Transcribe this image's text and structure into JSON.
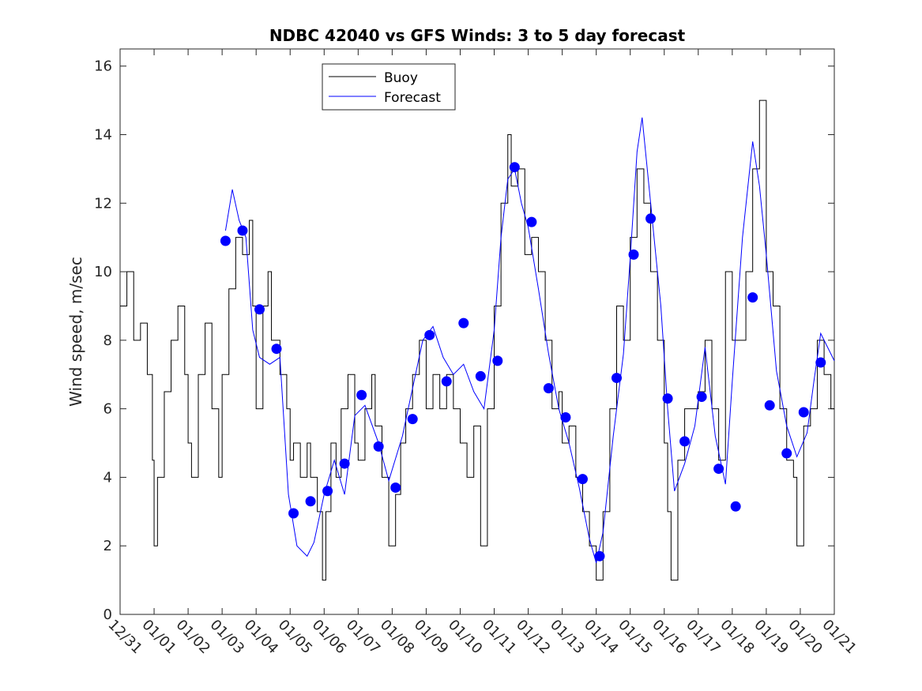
{
  "chart_data": {
    "type": "line",
    "title": "NDBC 42040 vs GFS Winds: 3 to 5 day forecast",
    "xlabel": "",
    "ylabel": "Wind speed, m/sec",
    "xlim": [
      0,
      21
    ],
    "ylim": [
      0,
      16.5
    ],
    "grid": false,
    "legend_position": "top-center",
    "x_ticks": [
      {
        "x": 0,
        "label": "12/31"
      },
      {
        "x": 1,
        "label": "01/01"
      },
      {
        "x": 2,
        "label": "01/02"
      },
      {
        "x": 3,
        "label": "01/03"
      },
      {
        "x": 4,
        "label": "01/04"
      },
      {
        "x": 5,
        "label": "01/05"
      },
      {
        "x": 6,
        "label": "01/06"
      },
      {
        "x": 7,
        "label": "01/07"
      },
      {
        "x": 8,
        "label": "01/08"
      },
      {
        "x": 9,
        "label": "01/09"
      },
      {
        "x": 10,
        "label": "01/10"
      },
      {
        "x": 11,
        "label": "01/11"
      },
      {
        "x": 12,
        "label": "01/12"
      },
      {
        "x": 13,
        "label": "01/13"
      },
      {
        "x": 14,
        "label": "01/14"
      },
      {
        "x": 15,
        "label": "01/15"
      },
      {
        "x": 16,
        "label": "01/16"
      },
      {
        "x": 17,
        "label": "01/17"
      },
      {
        "x": 18,
        "label": "01/18"
      },
      {
        "x": 19,
        "label": "01/19"
      },
      {
        "x": 20,
        "label": "01/20"
      },
      {
        "x": 21,
        "label": "01/21"
      }
    ],
    "y_ticks": [
      0,
      2,
      4,
      6,
      8,
      10,
      12,
      14,
      16
    ],
    "legend": [
      {
        "name": "Buoy",
        "color": "#000000"
      },
      {
        "name": "Forecast",
        "color": "#0000ff"
      }
    ],
    "series": [
      {
        "name": "Buoy",
        "color": "#000000",
        "points": [
          [
            0,
            9
          ],
          [
            0.2,
            10
          ],
          [
            0.4,
            8
          ],
          [
            0.6,
            8.5
          ],
          [
            0.8,
            7
          ],
          [
            0.95,
            4.5
          ],
          [
            1.0,
            2
          ],
          [
            1.1,
            4
          ],
          [
            1.3,
            6.5
          ],
          [
            1.5,
            8
          ],
          [
            1.7,
            9
          ],
          [
            1.9,
            7
          ],
          [
            2.0,
            5
          ],
          [
            2.1,
            4
          ],
          [
            2.3,
            7
          ],
          [
            2.5,
            8.5
          ],
          [
            2.7,
            6
          ],
          [
            2.9,
            4
          ],
          [
            3.0,
            7
          ],
          [
            3.2,
            9.5
          ],
          [
            3.4,
            11
          ],
          [
            3.6,
            10.5
          ],
          [
            3.8,
            11.5
          ],
          [
            3.9,
            9
          ],
          [
            4.0,
            6
          ],
          [
            4.2,
            9
          ],
          [
            4.35,
            10
          ],
          [
            4.45,
            8
          ],
          [
            4.7,
            7
          ],
          [
            4.9,
            6
          ],
          [
            5.0,
            4.5
          ],
          [
            5.1,
            5
          ],
          [
            5.3,
            4
          ],
          [
            5.5,
            5
          ],
          [
            5.6,
            4
          ],
          [
            5.8,
            3
          ],
          [
            5.95,
            1
          ],
          [
            6.05,
            3
          ],
          [
            6.2,
            5
          ],
          [
            6.35,
            4
          ],
          [
            6.5,
            6
          ],
          [
            6.7,
            7
          ],
          [
            6.9,
            5
          ],
          [
            7.0,
            4.5
          ],
          [
            7.2,
            6
          ],
          [
            7.4,
            7
          ],
          [
            7.5,
            5.5
          ],
          [
            7.7,
            4
          ],
          [
            7.9,
            2
          ],
          [
            8.1,
            3.5
          ],
          [
            8.25,
            5
          ],
          [
            8.4,
            6
          ],
          [
            8.6,
            7
          ],
          [
            8.8,
            8
          ],
          [
            9.0,
            6
          ],
          [
            9.2,
            7
          ],
          [
            9.4,
            6
          ],
          [
            9.6,
            7
          ],
          [
            9.8,
            6
          ],
          [
            10.0,
            5
          ],
          [
            10.2,
            4
          ],
          [
            10.4,
            5.5
          ],
          [
            10.6,
            2
          ],
          [
            10.8,
            6
          ],
          [
            11.0,
            9
          ],
          [
            11.2,
            12
          ],
          [
            11.4,
            14
          ],
          [
            11.5,
            12.5
          ],
          [
            11.7,
            13
          ],
          [
            11.9,
            10.5
          ],
          [
            12.1,
            11
          ],
          [
            12.3,
            10
          ],
          [
            12.5,
            8
          ],
          [
            12.7,
            6
          ],
          [
            12.9,
            6.5
          ],
          [
            13.0,
            5
          ],
          [
            13.2,
            5.5
          ],
          [
            13.4,
            4
          ],
          [
            13.6,
            3
          ],
          [
            13.8,
            2
          ],
          [
            14.0,
            1
          ],
          [
            14.2,
            3
          ],
          [
            14.4,
            6
          ],
          [
            14.6,
            9
          ],
          [
            14.8,
            8
          ],
          [
            15.0,
            11
          ],
          [
            15.2,
            13
          ],
          [
            15.4,
            12
          ],
          [
            15.6,
            10
          ],
          [
            15.8,
            8
          ],
          [
            16.0,
            5
          ],
          [
            16.1,
            3
          ],
          [
            16.2,
            1
          ],
          [
            16.4,
            4.5
          ],
          [
            16.6,
            6
          ],
          [
            16.8,
            6
          ],
          [
            17.0,
            6.5
          ],
          [
            17.2,
            8
          ],
          [
            17.4,
            6
          ],
          [
            17.6,
            4.5
          ],
          [
            17.8,
            10
          ],
          [
            18.0,
            8
          ],
          [
            18.2,
            8
          ],
          [
            18.4,
            10
          ],
          [
            18.6,
            13
          ],
          [
            18.8,
            15
          ],
          [
            19.0,
            10
          ],
          [
            19.2,
            9
          ],
          [
            19.4,
            6
          ],
          [
            19.6,
            4.5
          ],
          [
            19.8,
            4
          ],
          [
            19.9,
            2
          ],
          [
            20.1,
            5.5
          ],
          [
            20.3,
            6
          ],
          [
            20.5,
            8
          ],
          [
            20.7,
            7
          ],
          [
            20.9,
            6
          ],
          [
            21.0,
            6
          ]
        ]
      },
      {
        "name": "Forecast",
        "color": "#0000ff",
        "points": [
          [
            3.1,
            11.2
          ],
          [
            3.3,
            12.4
          ],
          [
            3.5,
            11.5
          ],
          [
            3.7,
            11
          ],
          [
            3.9,
            8.3
          ],
          [
            4.1,
            7.5
          ],
          [
            4.4,
            7.3
          ],
          [
            4.7,
            7.5
          ],
          [
            4.95,
            3.5
          ],
          [
            5.2,
            2
          ],
          [
            5.5,
            1.7
          ],
          [
            5.7,
            2.1
          ],
          [
            6.0,
            3.5
          ],
          [
            6.3,
            4.5
          ],
          [
            6.6,
            3.5
          ],
          [
            6.9,
            5.8
          ],
          [
            7.2,
            6.1
          ],
          [
            7.6,
            5
          ],
          [
            7.9,
            3.9
          ],
          [
            8.3,
            5.2
          ],
          [
            8.6,
            6.6
          ],
          [
            8.9,
            8
          ],
          [
            9.2,
            8.4
          ],
          [
            9.5,
            7.5
          ],
          [
            9.8,
            7
          ],
          [
            10.1,
            7.3
          ],
          [
            10.4,
            6.5
          ],
          [
            10.7,
            6
          ],
          [
            11.0,
            8.3
          ],
          [
            11.2,
            11
          ],
          [
            11.4,
            12.7
          ],
          [
            11.6,
            13
          ],
          [
            11.8,
            12
          ],
          [
            12.0,
            11.3
          ],
          [
            12.3,
            9.5
          ],
          [
            12.6,
            7.6
          ],
          [
            12.9,
            6
          ],
          [
            13.2,
            5
          ],
          [
            13.5,
            3.7
          ],
          [
            13.8,
            2.2
          ],
          [
            14.0,
            1.5
          ],
          [
            14.2,
            2.4
          ],
          [
            14.5,
            5.2
          ],
          [
            14.8,
            7.6
          ],
          [
            15.0,
            10.4
          ],
          [
            15.2,
            13.5
          ],
          [
            15.35,
            14.5
          ],
          [
            15.6,
            12
          ],
          [
            15.9,
            9
          ],
          [
            16.1,
            6
          ],
          [
            16.3,
            3.6
          ],
          [
            16.6,
            4.4
          ],
          [
            16.9,
            5.5
          ],
          [
            17.2,
            7.8
          ],
          [
            17.5,
            5.2
          ],
          [
            17.8,
            3.8
          ],
          [
            18.0,
            6.8
          ],
          [
            18.3,
            11
          ],
          [
            18.6,
            13.8
          ],
          [
            18.8,
            12.5
          ],
          [
            19.0,
            10.5
          ],
          [
            19.3,
            7.1
          ],
          [
            19.6,
            5.5
          ],
          [
            19.9,
            4.6
          ],
          [
            20.2,
            5.3
          ],
          [
            20.4,
            6.8
          ],
          [
            20.6,
            8.2
          ],
          [
            20.8,
            7.8
          ],
          [
            21.0,
            7.4
          ]
        ]
      }
    ],
    "forecast_markers": {
      "name": "Forecast markers",
      "color": "#0000ff",
      "points": [
        [
          3.1,
          10.9
        ],
        [
          3.6,
          11.2
        ],
        [
          4.1,
          8.9
        ],
        [
          4.6,
          7.75
        ],
        [
          5.1,
          2.95
        ],
        [
          5.6,
          3.3
        ],
        [
          6.1,
          3.6
        ],
        [
          6.6,
          4.4
        ],
        [
          7.1,
          6.4
        ],
        [
          7.6,
          4.9
        ],
        [
          8.1,
          3.7
        ],
        [
          8.6,
          5.7
        ],
        [
          9.1,
          8.15
        ],
        [
          9.6,
          6.8
        ],
        [
          10.1,
          8.5
        ],
        [
          10.6,
          6.95
        ],
        [
          11.1,
          7.4
        ],
        [
          11.6,
          13.05
        ],
        [
          12.1,
          11.45
        ],
        [
          12.6,
          6.6
        ],
        [
          13.1,
          5.75
        ],
        [
          13.6,
          3.95
        ],
        [
          14.1,
          1.7
        ],
        [
          14.6,
          6.9
        ],
        [
          15.1,
          10.5
        ],
        [
          15.6,
          11.55
        ],
        [
          16.1,
          6.3
        ],
        [
          16.6,
          5.05
        ],
        [
          17.1,
          6.35
        ],
        [
          17.6,
          4.25
        ],
        [
          18.1,
          3.15
        ],
        [
          18.6,
          9.25
        ],
        [
          19.1,
          6.1
        ],
        [
          19.6,
          4.7
        ],
        [
          20.1,
          5.9
        ],
        [
          20.6,
          7.35
        ]
      ]
    }
  }
}
